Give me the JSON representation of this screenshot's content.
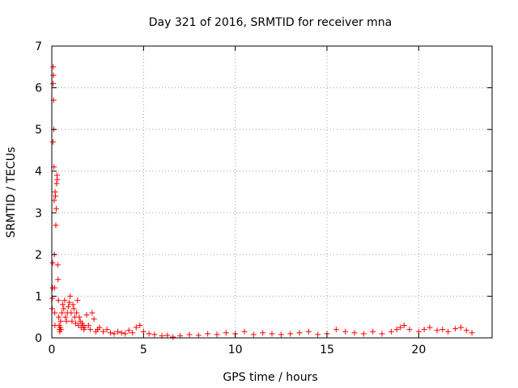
{
  "chart_data": {
    "type": "scatter",
    "title": "Day 321 of 2016, SRMTID for receiver mna",
    "xlabel": "GPS time / hours",
    "ylabel": "SRMTID / TECUs",
    "xlim": [
      0,
      24
    ],
    "ylim": [
      0,
      7
    ],
    "x_ticks": [
      0,
      5,
      10,
      15,
      20
    ],
    "y_ticks": [
      0,
      1,
      2,
      3,
      4,
      5,
      6,
      7
    ],
    "x_tick_labels": [
      "0",
      "5",
      "10",
      "15",
      "20"
    ],
    "y_tick_labels": [
      "0",
      "1",
      "2",
      "3",
      "4",
      "5",
      "6",
      "7"
    ],
    "grid": true,
    "marker": "+",
    "series": [
      {
        "name": "SRMTID",
        "color": "#ff0000",
        "x": [
          0.02,
          0.03,
          0.04,
          0.05,
          0.06,
          0.07,
          0.08,
          0.09,
          0.1,
          0.11,
          0.12,
          0.13,
          0.14,
          0.15,
          0.16,
          0.17,
          0.18,
          0.2,
          0.22,
          0.24,
          0.26,
          0.28,
          0.3,
          0.32,
          0.34,
          0.36,
          0.38,
          0.4,
          0.42,
          0.44,
          0.46,
          0.48,
          0.5,
          0.55,
          0.6,
          0.65,
          0.7,
          0.75,
          0.8,
          0.85,
          0.9,
          0.95,
          1.0,
          1.05,
          1.1,
          1.15,
          1.2,
          1.25,
          1.3,
          1.35,
          1.4,
          1.45,
          1.5,
          1.55,
          1.6,
          1.65,
          1.7,
          1.75,
          1.8,
          1.9,
          2.0,
          2.1,
          2.2,
          2.3,
          2.4,
          2.5,
          2.6,
          2.8,
          3.0,
          3.2,
          3.4,
          3.6,
          3.8,
          4.0,
          4.2,
          4.4,
          4.6,
          4.8,
          5.0,
          5.3,
          5.6,
          6.0,
          6.3,
          6.6,
          7.0,
          7.5,
          8.0,
          8.5,
          9.0,
          9.5,
          10.0,
          10.5,
          11.0,
          11.5,
          12.0,
          12.5,
          13.0,
          13.5,
          14.0,
          14.5,
          15.0,
          15.5,
          16.0,
          16.5,
          17.0,
          17.5,
          18.0,
          18.5,
          18.8,
          19.0,
          19.2,
          19.5,
          20.0,
          20.3,
          20.6,
          21.0,
          21.3,
          21.6,
          22.0,
          22.3,
          22.6,
          22.9
        ],
        "y": [
          0.7,
          0.95,
          1.2,
          1.8,
          4.7,
          6.1,
          6.5,
          6.3,
          5.7,
          5.0,
          4.1,
          3.3,
          2.0,
          1.2,
          0.6,
          0.3,
          3.5,
          3.4,
          2.7,
          3.1,
          3.7,
          3.9,
          3.8,
          1.75,
          1.4,
          0.9,
          0.5,
          0.3,
          0.2,
          0.15,
          0.25,
          0.4,
          0.2,
          0.6,
          0.8,
          0.7,
          0.9,
          0.5,
          0.4,
          0.6,
          0.75,
          0.85,
          1.0,
          0.6,
          0.4,
          0.8,
          0.7,
          0.5,
          0.35,
          0.6,
          0.9,
          0.3,
          0.5,
          0.4,
          0.25,
          0.35,
          0.3,
          0.2,
          0.25,
          0.55,
          0.3,
          0.2,
          0.6,
          0.45,
          0.15,
          0.2,
          0.25,
          0.15,
          0.2,
          0.12,
          0.1,
          0.15,
          0.12,
          0.1,
          0.18,
          0.12,
          0.25,
          0.3,
          0.15,
          0.1,
          0.08,
          0.05,
          0.06,
          0.02,
          0.05,
          0.08,
          0.06,
          0.1,
          0.08,
          0.12,
          0.1,
          0.15,
          0.08,
          0.12,
          0.1,
          0.08,
          0.1,
          0.12,
          0.15,
          0.08,
          0.1,
          0.2,
          0.15,
          0.12,
          0.1,
          0.15,
          0.1,
          0.15,
          0.2,
          0.25,
          0.3,
          0.2,
          0.15,
          0.2,
          0.25,
          0.18,
          0.2,
          0.15,
          0.22,
          0.25,
          0.18,
          0.12
        ]
      }
    ]
  }
}
